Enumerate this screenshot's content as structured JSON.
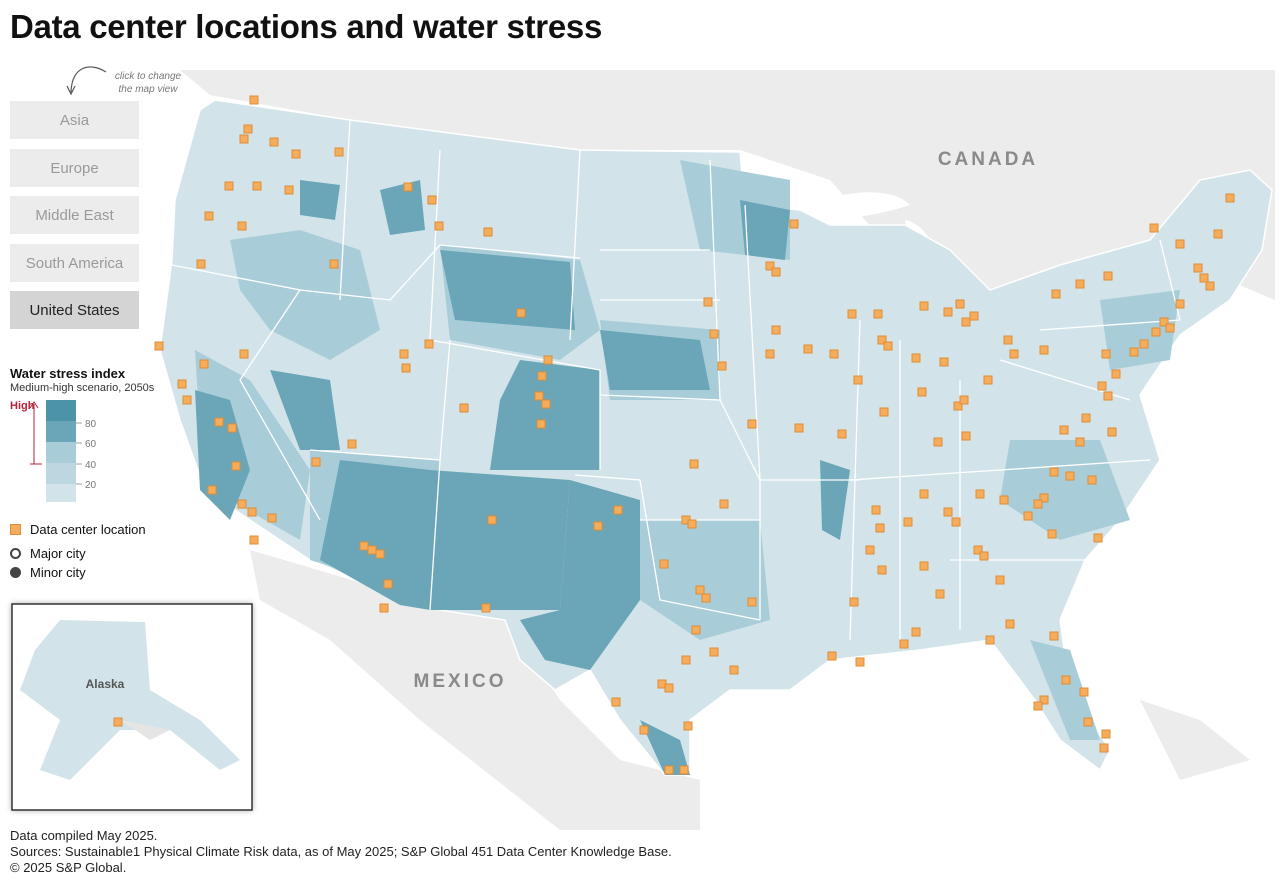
{
  "title": "Data center locations and water stress",
  "hint": "click to change the map view",
  "regions": [
    {
      "label": "Asia",
      "active": false
    },
    {
      "label": "Europe",
      "active": false
    },
    {
      "label": "Middle East",
      "active": false
    },
    {
      "label": "South America",
      "active": false
    },
    {
      "label": "United States",
      "active": true
    }
  ],
  "map_labels": {
    "canada": "CANADA",
    "mexico": "MEXICO",
    "alaska": "Alaska"
  },
  "legend": {
    "title": "Water stress index",
    "subtitle": "Medium-high scenario, 2050s",
    "high_label": "High",
    "scale_ticks": [
      "80",
      "60",
      "40",
      "20"
    ],
    "data_center": "Data center location",
    "major_city": "Major city",
    "minor_city": "Minor city"
  },
  "colors": {
    "stress_low": "#d2e4ea",
    "stress_mid": "#a9cdd8",
    "stress_high": "#6aa6b8",
    "stress_very_high": "#4d93a8",
    "data_center": "#f4ac5d",
    "data_center_border": "#e08c35",
    "land_other": "#e5e5e5",
    "high_marker": "#b3243b"
  },
  "footer": {
    "compiled": "Data compiled May 2025.",
    "sources": "Sources: Sustainable1 Physical Climate Risk data, as of May 2025; S&P Global 451 Data Center Knowledge Base.",
    "copyright": "© 2025 S&P Global."
  }
}
